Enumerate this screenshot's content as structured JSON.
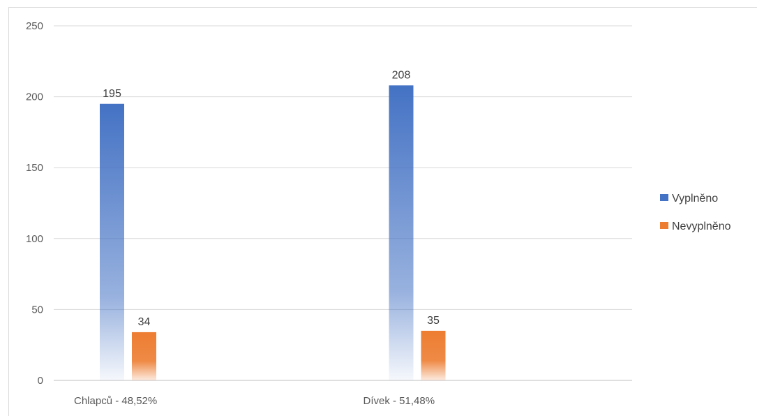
{
  "chart_data": {
    "type": "bar",
    "categories": [
      "Chlapců - 48,52%",
      "Dívek - 51,48%"
    ],
    "series": [
      {
        "name": "Vyplněno",
        "values": [
          195,
          208
        ],
        "color": "#4472c4"
      },
      {
        "name": "Nevyplněno",
        "values": [
          34,
          35
        ],
        "color": "#ed7d31"
      }
    ],
    "ylim": [
      0,
      250
    ],
    "yticks": [
      0,
      50,
      100,
      150,
      200,
      250
    ],
    "grid": true,
    "legend": "right",
    "data_labels": true
  }
}
